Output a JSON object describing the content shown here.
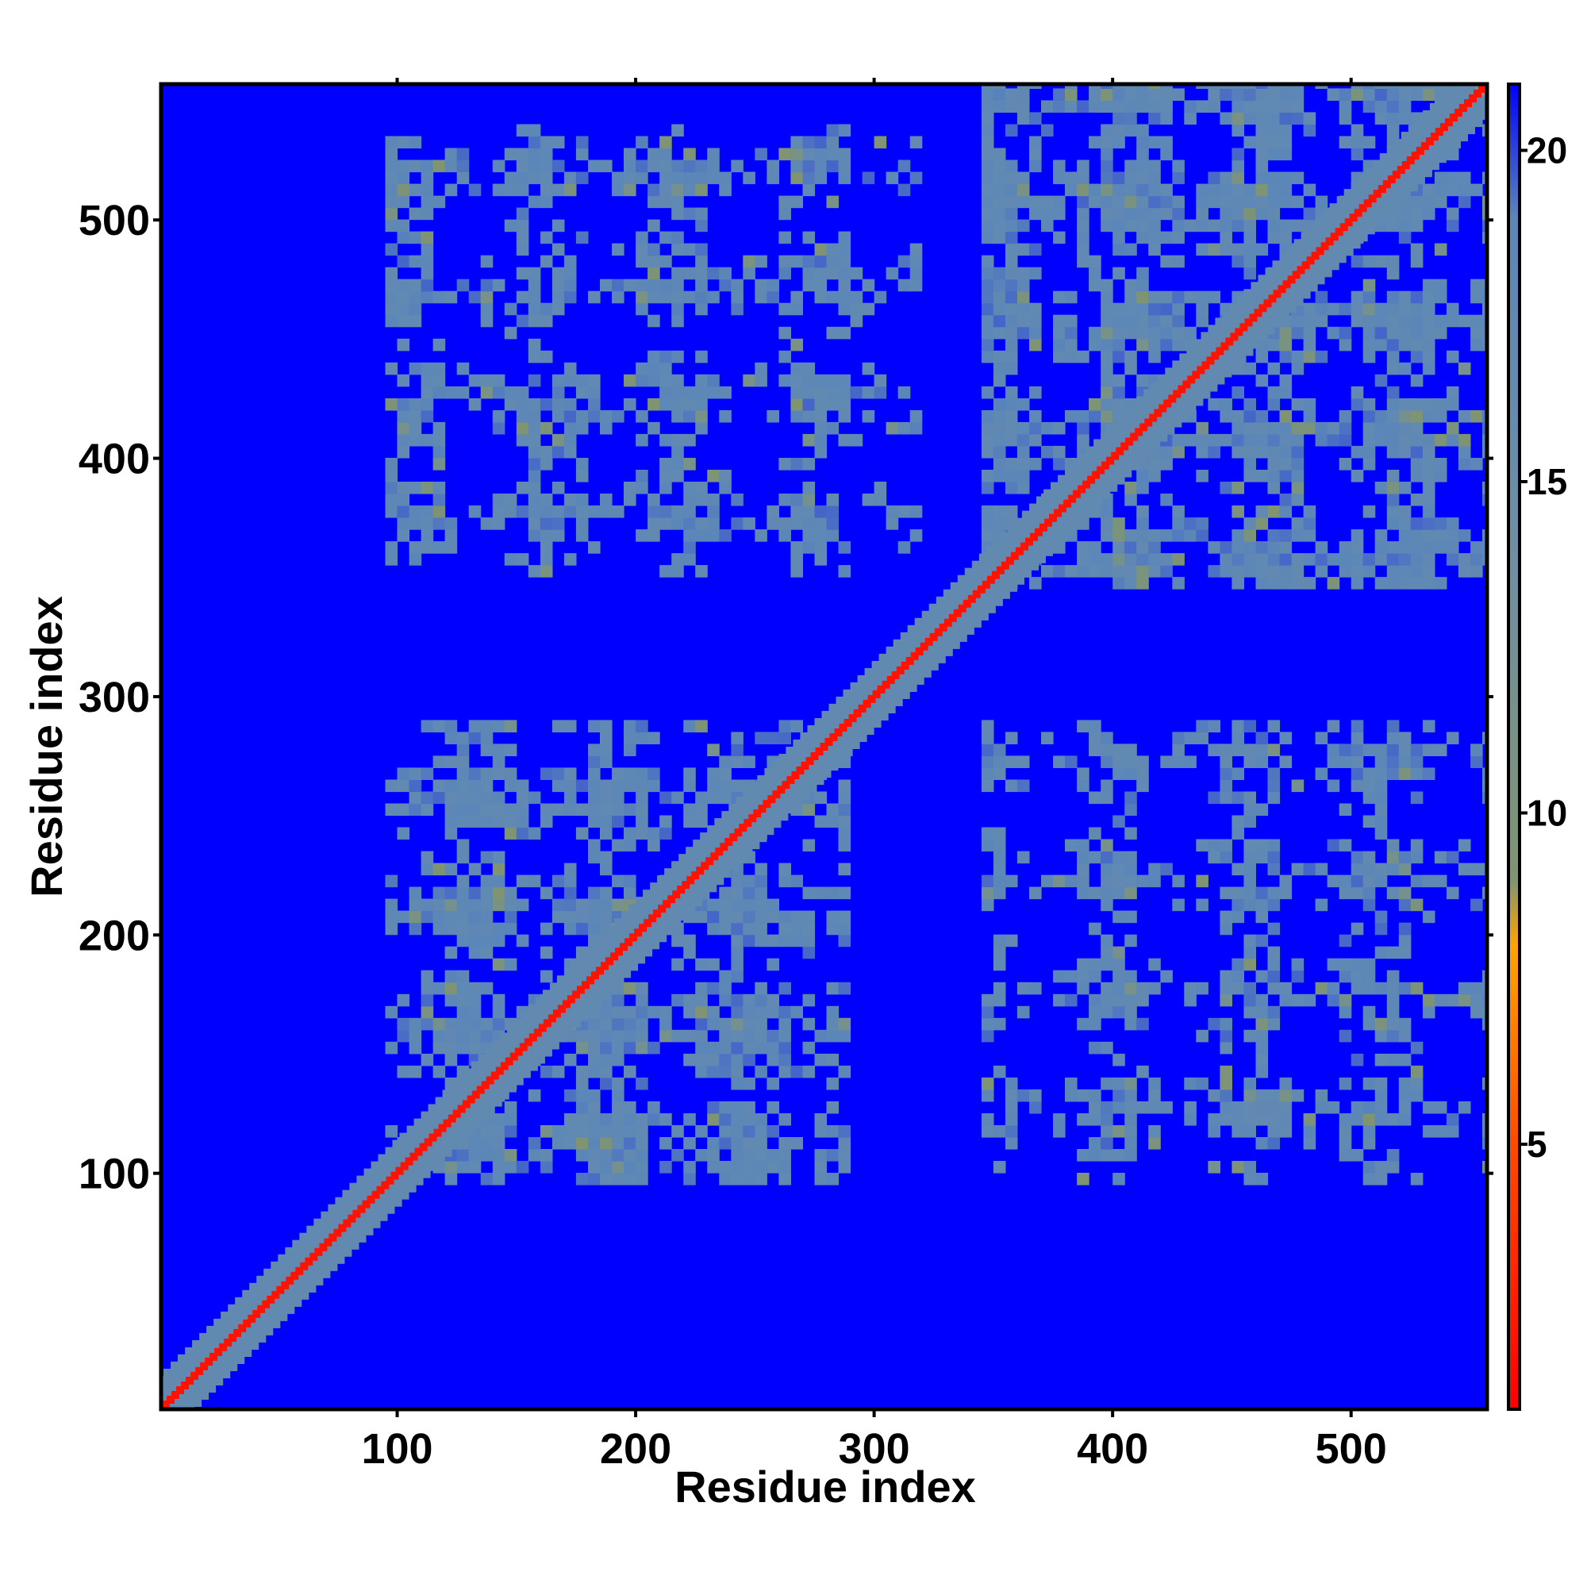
{
  "chart_data": {
    "type": "heatmap",
    "title": "",
    "xlabel": "Residue index",
    "ylabel": "Residue index",
    "xlim": [
      1,
      557
    ],
    "ylim": [
      1,
      557
    ],
    "x_ticks": [
      100,
      200,
      300,
      400,
      500
    ],
    "y_ticks": [
      100,
      200,
      300,
      400,
      500
    ],
    "x_tick_labels": [
      "100",
      "200",
      "300",
      "400",
      "500"
    ],
    "y_tick_labels": [
      "100",
      "200",
      "300",
      "400",
      "500"
    ],
    "colorbar": {
      "range": [
        1,
        21
      ],
      "ticks": [
        5,
        10,
        15,
        20
      ],
      "tick_labels": [
        "5",
        "10",
        "15",
        "20"
      ],
      "colors": [
        {
          "value": 1,
          "color": "#ff0000"
        },
        {
          "value": 5,
          "color": "#ff4a00"
        },
        {
          "value": 8,
          "color": "#ffa500"
        },
        {
          "value": 9,
          "color": "#7f9470"
        },
        {
          "value": 14,
          "color": "#6d8fa6"
        },
        {
          "value": 19,
          "color": "#5b86b8"
        },
        {
          "value": 21,
          "color": "#0000ff"
        }
      ]
    },
    "background_value": 21,
    "background_color": "#0000ff",
    "matrix_description_regions": [
      {
        "x": [
          95,
          290
        ],
        "y": [
          95,
          290
        ],
        "level": "medium"
      },
      {
        "x": [
          345,
          557
        ],
        "y": [
          345,
          557
        ],
        "level": "medium"
      },
      {
        "x": [
          345,
          557
        ],
        "y": [
          95,
          290
        ],
        "level": "sparse"
      },
      {
        "x": [
          95,
          320
        ],
        "y": [
          350,
          540
        ],
        "level": "sparse"
      }
    ],
    "diagonal": {
      "from": 1,
      "to": 557,
      "value": 2
    }
  },
  "colors": {
    "background": "#0000ff",
    "diagonal": "#ff0000",
    "contact": "#5b86b8",
    "near_contact": "#ffa500",
    "frame": "#000000"
  }
}
